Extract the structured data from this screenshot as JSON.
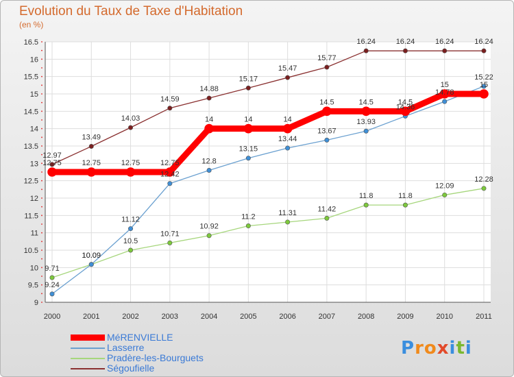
{
  "title": "Evolution du Taux de Taxe d'Habitation",
  "unit": "(en %)",
  "chart_data": {
    "type": "line",
    "x": [
      "2000",
      "2001",
      "2002",
      "2003",
      "2004",
      "2005",
      "2006",
      "2007",
      "2008",
      "2009",
      "2010",
      "2011"
    ],
    "ylim": [
      9,
      16.5
    ],
    "yticks": [
      "9",
      "9.5",
      "10",
      "10.5",
      "11",
      "11.5",
      "12",
      "12.5",
      "13",
      "13.5",
      "14",
      "14.5",
      "15",
      "15.5",
      "16",
      "16.5"
    ],
    "grid": true,
    "legend": "bottom-left",
    "series": [
      {
        "name": "MéRENVIELLE",
        "color": "#ff0000",
        "values": [
          12.75,
          12.75,
          12.75,
          12.75,
          14,
          14,
          14,
          14.5,
          14.5,
          14.5,
          15,
          15
        ],
        "labels": [
          "12.75",
          "12.75",
          "12.75",
          "12.75",
          "14",
          "14",
          "14",
          "14.5",
          "14.5",
          "14.5",
          "15",
          "15"
        ]
      },
      {
        "name": "Lasserre",
        "color": "#6aa0d0",
        "marker": "#3f8fd6",
        "values": [
          9.24,
          10.09,
          11.12,
          12.42,
          12.8,
          13.15,
          13.44,
          13.67,
          13.93,
          14.36,
          14.78,
          15.22
        ],
        "labels": [
          "9.24",
          "10.09",
          "11.12",
          "12.42",
          "12.8",
          "13.15",
          "13.44",
          "13.67",
          "13.93",
          "14.36",
          "14.78",
          "15.22"
        ]
      },
      {
        "name": "Pradère-les-Bourguets",
        "color": "#a6d67c",
        "marker": "#7dc93c",
        "values": [
          9.71,
          10.09,
          10.5,
          10.71,
          10.92,
          11.2,
          11.31,
          11.42,
          11.8,
          11.8,
          12.09,
          12.28
        ],
        "labels": [
          "9.71",
          "10.09",
          "10.5",
          "10.71",
          "10.92",
          "11.2",
          "11.31",
          "11.42",
          "11.8",
          "11.8",
          "12.09",
          "12.28"
        ]
      },
      {
        "name": "Ségoufielle",
        "color": "#8a3030",
        "marker": "#7a1f1f",
        "values": [
          12.97,
          13.49,
          14.03,
          14.59,
          14.88,
          15.17,
          15.47,
          15.77,
          16.24,
          16.24,
          16.24,
          16.24
        ],
        "labels": [
          "12.97",
          "13.49",
          "14.03",
          "14.59",
          "14.88",
          "15.17",
          "15.47",
          "15.77",
          "16.24",
          "16.24",
          "16.24",
          "16.24"
        ]
      }
    ]
  },
  "logo": {
    "letters": [
      "P",
      "r",
      "o",
      "x",
      "i",
      "t",
      "i"
    ],
    "colors": [
      "#3a8ede",
      "#f08a1c",
      "#f08a1c",
      "#e24a2a",
      "#3a8ede",
      "#7ab830",
      "#3a8ede"
    ]
  }
}
